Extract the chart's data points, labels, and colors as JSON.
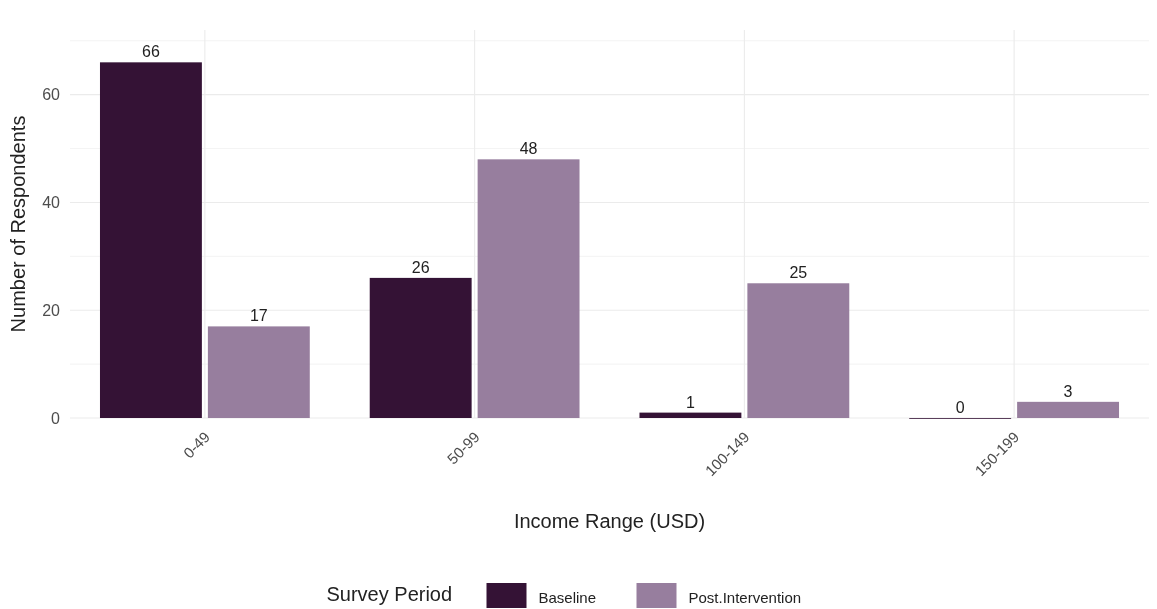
{
  "chart_data": {
    "type": "bar",
    "xlabel": "Income Range (USD)",
    "ylabel": "Number of Respondents",
    "legend_title": "Survey Period",
    "categories": [
      "0-49",
      "50-99",
      "100-149",
      "150-199"
    ],
    "series": [
      {
        "name": "Baseline",
        "color": "#341235",
        "values": [
          66,
          26,
          1,
          0
        ]
      },
      {
        "name": "Post.Intervention",
        "color": "#977e9e",
        "values": [
          17,
          48,
          25,
          3
        ]
      }
    ],
    "ylim": [
      0,
      72
    ],
    "yticks": [
      0,
      {
        "value": 10,
        "label": null
      },
      20,
      {
        "value": 30,
        "label": null
      },
      40,
      {
        "value": 50,
        "label": null
      },
      60,
      {
        "value": 70,
        "label": null
      }
    ],
    "grid": true,
    "legend": "bottom",
    "data_labels": true
  }
}
